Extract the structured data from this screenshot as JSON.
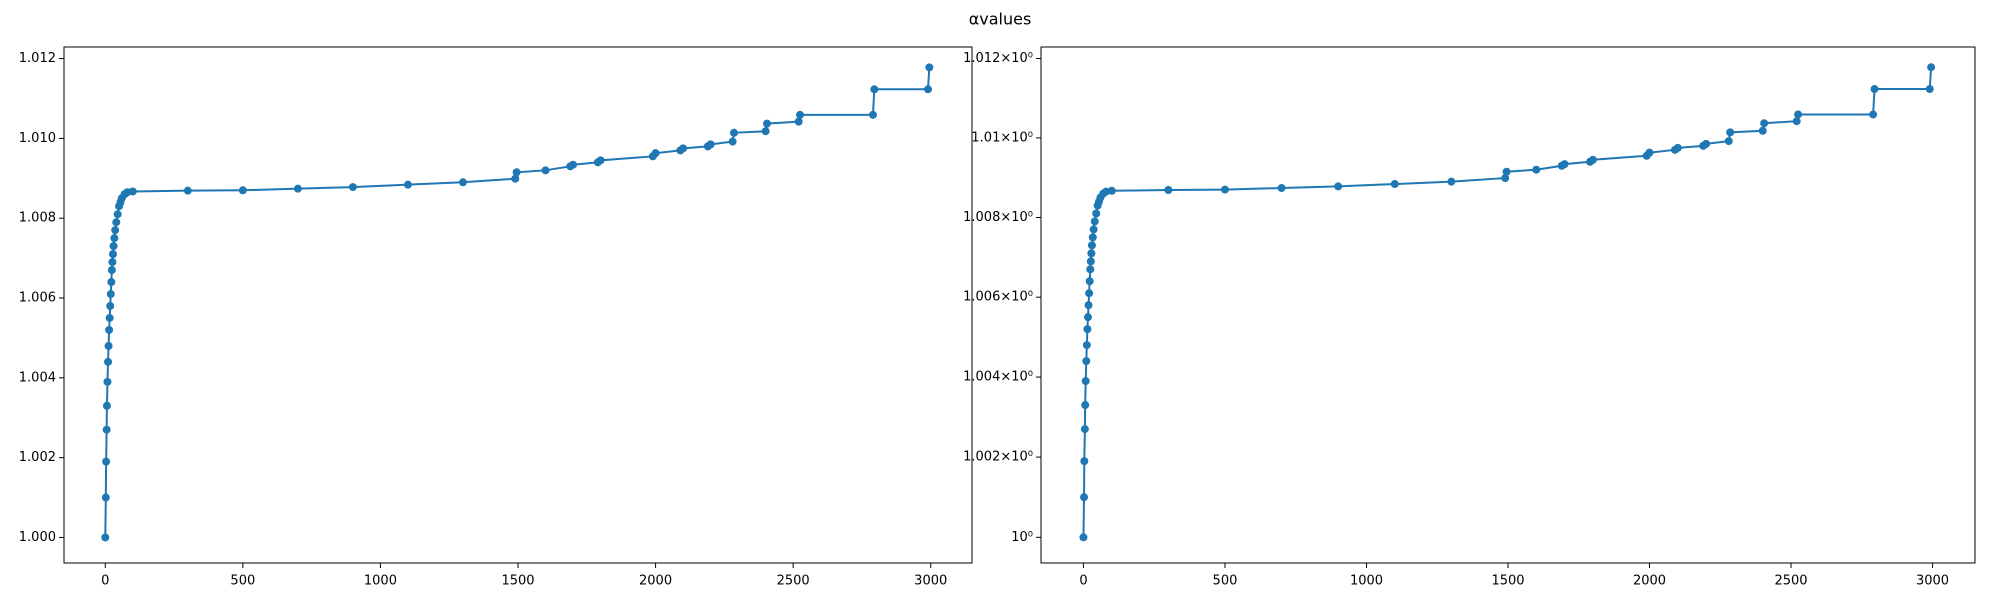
{
  "title": "αvalues",
  "chart_data": [
    {
      "type": "line",
      "yscale": "linear",
      "color": "#1f77b4",
      "markers": true,
      "x": [
        0,
        2,
        3,
        5,
        6,
        8,
        10,
        12,
        14,
        16,
        18,
        20,
        22,
        24,
        26,
        28,
        30,
        33,
        36,
        40,
        45,
        50,
        55,
        60,
        70,
        80,
        100,
        300,
        500,
        700,
        900,
        1100,
        1300,
        1490,
        1495,
        1600,
        1690,
        1700,
        1790,
        1800,
        1990,
        2000,
        2090,
        2100,
        2190,
        2200,
        2280,
        2285,
        2400,
        2405,
        2520,
        2525,
        2790,
        2795,
        2990,
        2995
      ],
      "values": [
        1.0,
        1.001,
        1.0019,
        1.0027,
        1.0033,
        1.0039,
        1.0044,
        1.0048,
        1.0052,
        1.0055,
        1.0058,
        1.0061,
        1.0064,
        1.0067,
        1.0069,
        1.0071,
        1.0073,
        1.0075,
        1.0077,
        1.0079,
        1.0081,
        1.0083,
        1.0084,
        1.0085,
        1.0086,
        1.00865,
        1.00867,
        1.00869,
        1.0087,
        1.00874,
        1.00878,
        1.00884,
        1.0089,
        1.00899,
        1.00915,
        1.0092,
        1.0093,
        1.00934,
        1.0094,
        1.00945,
        1.00955,
        1.00963,
        1.0097,
        1.00975,
        1.0098,
        1.00985,
        1.00992,
        1.01014,
        1.01018,
        1.01037,
        1.01042,
        1.01059,
        1.01059,
        1.01123,
        1.01123,
        1.01178
      ],
      "xlim": [
        -150,
        3150
      ],
      "ylim": [
        0.99936,
        1.01229
      ],
      "xticks": [
        0,
        500,
        1000,
        1500,
        2000,
        2500,
        3000
      ],
      "yticks": [
        {
          "value": 1.0,
          "label": "1.000"
        },
        1.002,
        1.004,
        1.006,
        1.008,
        {
          "value": 1.01,
          "label": "1.010"
        },
        1.012
      ]
    },
    {
      "type": "line",
      "yscale": "log",
      "color": "#1f77b4",
      "markers": true,
      "x": [
        0,
        2,
        3,
        5,
        6,
        8,
        10,
        12,
        14,
        16,
        18,
        20,
        22,
        24,
        26,
        28,
        30,
        33,
        36,
        40,
        45,
        50,
        55,
        60,
        70,
        80,
        100,
        300,
        500,
        700,
        900,
        1100,
        1300,
        1490,
        1495,
        1600,
        1690,
        1700,
        1790,
        1800,
        1990,
        2000,
        2090,
        2100,
        2190,
        2200,
        2280,
        2285,
        2400,
        2405,
        2520,
        2525,
        2790,
        2795,
        2990,
        2995
      ],
      "values": [
        1.0,
        1.001,
        1.0019,
        1.0027,
        1.0033,
        1.0039,
        1.0044,
        1.0048,
        1.0052,
        1.0055,
        1.0058,
        1.0061,
        1.0064,
        1.0067,
        1.0069,
        1.0071,
        1.0073,
        1.0075,
        1.0077,
        1.0079,
        1.0081,
        1.0083,
        1.0084,
        1.0085,
        1.0086,
        1.00865,
        1.00867,
        1.00869,
        1.0087,
        1.00874,
        1.00878,
        1.00884,
        1.0089,
        1.00899,
        1.00915,
        1.0092,
        1.0093,
        1.00934,
        1.0094,
        1.00945,
        1.00955,
        1.00963,
        1.0097,
        1.00975,
        1.0098,
        1.00985,
        1.00992,
        1.01014,
        1.01018,
        1.01037,
        1.01042,
        1.01059,
        1.01059,
        1.01123,
        1.01123,
        1.01178
      ],
      "xlim": [
        -150,
        3150
      ],
      "ylim": [
        0.99936,
        1.01229
      ],
      "xticks": [
        0,
        500,
        1000,
        1500,
        2000,
        2500,
        3000
      ],
      "yticks": [
        {
          "value": 1.0,
          "label": "10⁰"
        },
        {
          "value": 1.002,
          "label": "1.002×10⁰"
        },
        {
          "value": 1.004,
          "label": "1.004×10⁰"
        },
        {
          "value": 1.006,
          "label": "1.006×10⁰"
        },
        {
          "value": 1.008,
          "label": "1.008×10⁰"
        },
        {
          "value": 1.01,
          "label": "1.01×10⁰"
        },
        {
          "value": 1.012,
          "label": "1.012×10⁰"
        }
      ]
    }
  ]
}
